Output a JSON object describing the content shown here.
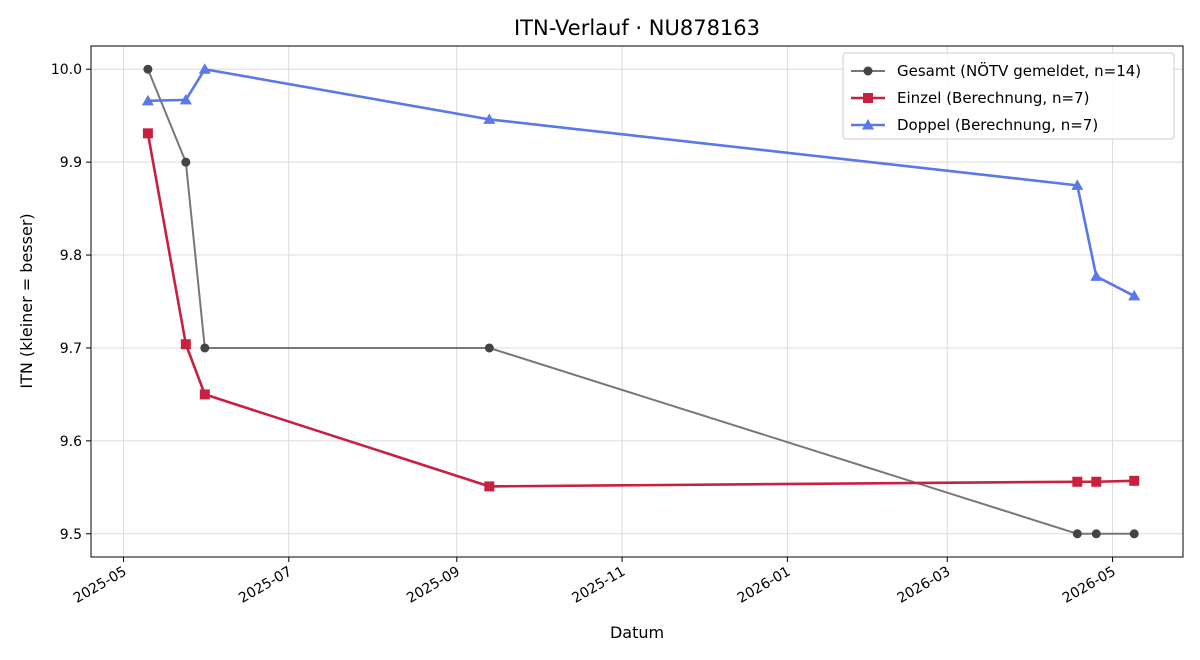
{
  "chart_data": {
    "type": "line",
    "title": "ITN-Verlauf · NU878163",
    "xlabel": "Datum",
    "ylabel": "ITN  (kleiner = besser)",
    "xlim": [
      "2025-04-19",
      "2026-05-27"
    ],
    "ylim": [
      9.475,
      10.025
    ],
    "grid": true,
    "legend_position": "top-right",
    "x_ticks": [
      "2025-05",
      "2025-07",
      "2025-09",
      "2025-11",
      "2026-01",
      "2026-03",
      "2026-05"
    ],
    "y_ticks": [
      "9.5",
      "9.6",
      "9.7",
      "9.8",
      "9.9",
      "10.0"
    ],
    "series": [
      {
        "name": "Gesamt (NÖTV gemeldet, n=14)",
        "color": "#777777",
        "marker_color": "#444444",
        "marker": "circle",
        "points": [
          {
            "x": "2025-05-10",
            "y": 10.0
          },
          {
            "x": "2025-05-24",
            "y": 9.9
          },
          {
            "x": "2025-05-31",
            "y": 9.7
          },
          {
            "x": "2025-09-13",
            "y": 9.7
          },
          {
            "x": "2026-04-18",
            "y": 9.5
          },
          {
            "x": "2026-04-25",
            "y": 9.5
          },
          {
            "x": "2026-05-09",
            "y": 9.5
          }
        ]
      },
      {
        "name": "Einzel (Berechnung, n=7)",
        "color": "#c8203f",
        "marker_color": "#c8203f",
        "marker": "square",
        "points": [
          {
            "x": "2025-05-10",
            "y": 9.931
          },
          {
            "x": "2025-05-24",
            "y": 9.704
          },
          {
            "x": "2025-05-31",
            "y": 9.65
          },
          {
            "x": "2025-09-13",
            "y": 9.551
          },
          {
            "x": "2026-04-18",
            "y": 9.556
          },
          {
            "x": "2026-04-25",
            "y": 9.556
          },
          {
            "x": "2026-05-09",
            "y": 9.557
          }
        ]
      },
      {
        "name": "Doppel (Berechnung, n=7)",
        "color": "#5a78e8",
        "marker_color": "#5a78e8",
        "marker": "triangle",
        "points": [
          {
            "x": "2025-05-10",
            "y": 9.966
          },
          {
            "x": "2025-05-24",
            "y": 9.967
          },
          {
            "x": "2025-05-31",
            "y": 10.0
          },
          {
            "x": "2025-09-13",
            "y": 9.946
          },
          {
            "x": "2026-04-18",
            "y": 9.875
          },
          {
            "x": "2026-04-25",
            "y": 9.777
          },
          {
            "x": "2026-05-09",
            "y": 9.756
          }
        ]
      }
    ]
  }
}
